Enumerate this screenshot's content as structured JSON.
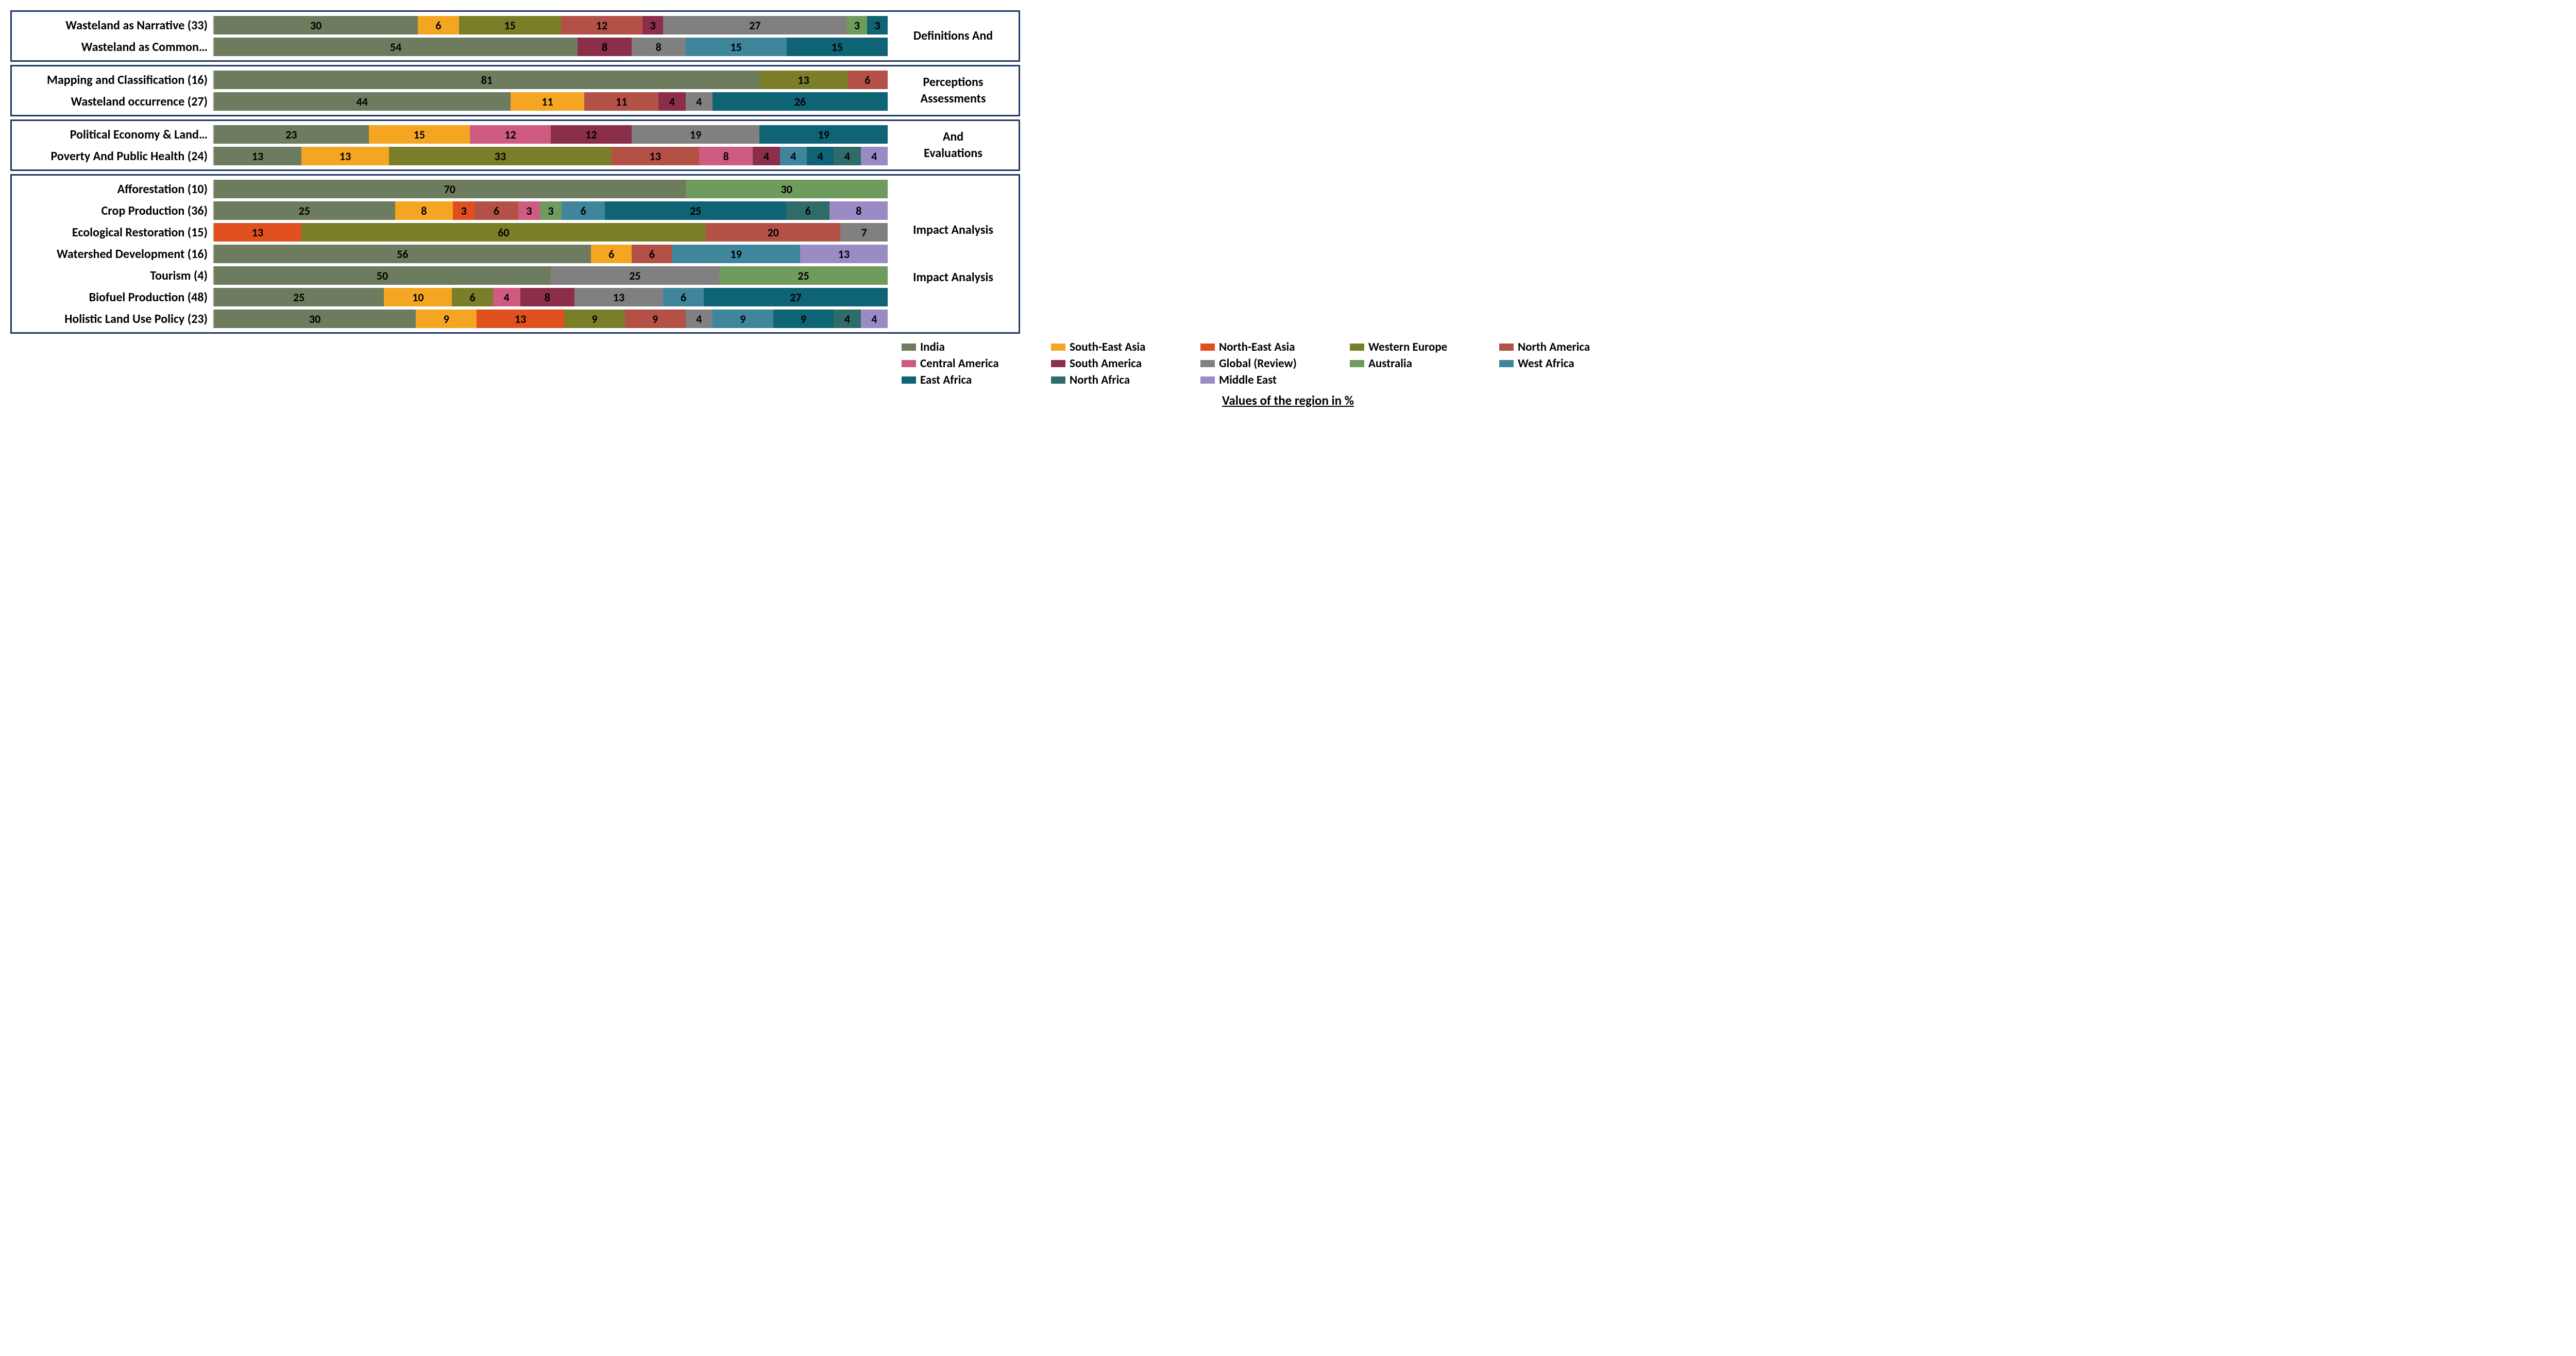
{
  "footer": "Values of the region in %",
  "font": {
    "family": "Calibri, Arial, sans-serif",
    "label_size": 24,
    "value_size": 22,
    "legend_size": 23
  },
  "regions": [
    {
      "key": "india",
      "name": "India",
      "color": "#6d7b5e"
    },
    {
      "key": "se_asia",
      "name": "South-East Asia",
      "color": "#f4a522"
    },
    {
      "key": "ne_asia",
      "name": "North-East Asia",
      "color": "#e0501f"
    },
    {
      "key": "w_europe",
      "name": "Western Europe",
      "color": "#7b7e28"
    },
    {
      "key": "n_america",
      "name": "North America",
      "color": "#b35147"
    },
    {
      "key": "c_america",
      "name": "Central America",
      "color": "#cf5c80"
    },
    {
      "key": "s_america",
      "name": "South America",
      "color": "#8b2e4a"
    },
    {
      "key": "global",
      "name": "Global (Review)",
      "color": "#808080"
    },
    {
      "key": "australia",
      "name": "Australia",
      "color": "#6f9b5d"
    },
    {
      "key": "w_africa",
      "name": "West Africa",
      "color": "#3f859b"
    },
    {
      "key": "e_africa",
      "name": "East Africa",
      "color": "#0e6374"
    },
    {
      "key": "n_africa",
      "name": "North Africa",
      "color": "#2f6b68"
    },
    {
      "key": "m_east",
      "name": "Middle East",
      "color": "#9b8bc4"
    }
  ],
  "groups": [
    {
      "label_lines": [
        "Definitions And",
        "Perceptions"
      ],
      "rows": [
        {
          "label": "Wasteland as Narrative (33)",
          "segments": [
            {
              "region": "india",
              "value": 30
            },
            {
              "region": "se_asia",
              "value": 6
            },
            {
              "region": "w_europe",
              "value": 15
            },
            {
              "region": "n_america",
              "value": 12
            },
            {
              "region": "s_america",
              "value": 3
            },
            {
              "region": "global",
              "value": 27
            },
            {
              "region": "australia",
              "value": 3
            },
            {
              "region": "e_africa",
              "value": 3
            }
          ]
        },
        {
          "label": "Wasteland as Common…",
          "segments": [
            {
              "region": "india",
              "value": 54
            },
            {
              "region": "s_america",
              "value": 8
            },
            {
              "region": "global",
              "value": 8
            },
            {
              "region": "w_africa",
              "value": 15
            },
            {
              "region": "e_africa",
              "value": 15
            }
          ]
        }
      ]
    },
    {
      "label_lines": [
        "Assessments",
        "And",
        "Evaluations"
      ],
      "label_slice_top": 1,
      "rows": [
        {
          "label": "Mapping and Classification (16)",
          "segments": [
            {
              "region": "india",
              "value": 81
            },
            {
              "region": "w_europe",
              "value": 13
            },
            {
              "region": "n_america",
              "value": 6
            }
          ]
        },
        {
          "label": "Wasteland occurrence (27)",
          "segments": [
            {
              "region": "india",
              "value": 44
            },
            {
              "region": "se_asia",
              "value": 11
            },
            {
              "region": "n_america",
              "value": 11
            },
            {
              "region": "s_america",
              "value": 4
            },
            {
              "region": "global",
              "value": 4
            },
            {
              "region": "e_africa",
              "value": 26
            }
          ]
        }
      ]
    },
    {
      "label_lines": [
        ""
      ],
      "rows": [
        {
          "label": "Political Economy & Land…",
          "segments": [
            {
              "region": "india",
              "value": 23
            },
            {
              "region": "se_asia",
              "value": 15
            },
            {
              "region": "c_america",
              "value": 12
            },
            {
              "region": "s_america",
              "value": 12
            },
            {
              "region": "global",
              "value": 19
            },
            {
              "region": "e_africa",
              "value": 19
            }
          ]
        },
        {
          "label": "Poverty And Public Health (24)",
          "segments": [
            {
              "region": "india",
              "value": 13
            },
            {
              "region": "se_asia",
              "value": 13
            },
            {
              "region": "w_europe",
              "value": 33
            },
            {
              "region": "n_america",
              "value": 13
            },
            {
              "region": "c_america",
              "value": 8
            },
            {
              "region": "s_america",
              "value": 4
            },
            {
              "region": "w_africa",
              "value": 4
            },
            {
              "region": "e_africa",
              "value": 4
            },
            {
              "region": "n_africa",
              "value": 4
            },
            {
              "region": "m_east",
              "value": 4
            }
          ]
        }
      ]
    },
    {
      "label_lines": [
        "Impact Analysis",
        "",
        "",
        "Impact Analysis"
      ],
      "rows": [
        {
          "label": "Afforestation (10)",
          "segments": [
            {
              "region": "india",
              "value": 70
            },
            {
              "region": "australia",
              "value": 30
            }
          ]
        },
        {
          "label": "Crop Production (36)",
          "segments": [
            {
              "region": "india",
              "value": 25
            },
            {
              "region": "se_asia",
              "value": 8
            },
            {
              "region": "ne_asia",
              "value": 3
            },
            {
              "region": "n_america",
              "value": 6
            },
            {
              "region": "c_america",
              "value": 3
            },
            {
              "region": "australia",
              "value": 3
            },
            {
              "region": "w_africa",
              "value": 6
            },
            {
              "region": "e_africa",
              "value": 25
            },
            {
              "region": "n_africa",
              "value": 6
            },
            {
              "region": "m_east",
              "value": 8
            }
          ]
        },
        {
          "label": "Ecological Restoration (15)",
          "segments": [
            {
              "region": "ne_asia",
              "value": 13
            },
            {
              "region": "w_europe",
              "value": 60
            },
            {
              "region": "n_america",
              "value": 20
            },
            {
              "region": "global",
              "value": 7
            }
          ]
        },
        {
          "label": "Watershed Development (16)",
          "segments": [
            {
              "region": "india",
              "value": 56
            },
            {
              "region": "se_asia",
              "value": 6
            },
            {
              "region": "n_america",
              "value": 6
            },
            {
              "region": "w_africa",
              "value": 19
            },
            {
              "region": "m_east",
              "value": 13
            }
          ]
        },
        {
          "label": "Tourism (4)",
          "segments": [
            {
              "region": "india",
              "value": 50
            },
            {
              "region": "global",
              "value": 25
            },
            {
              "region": "australia",
              "value": 25
            }
          ]
        },
        {
          "label": "Biofuel Production (48)",
          "segments": [
            {
              "region": "india",
              "value": 25
            },
            {
              "region": "se_asia",
              "value": 10
            },
            {
              "region": "w_europe",
              "value": 6
            },
            {
              "region": "c_america",
              "value": 4
            },
            {
              "region": "s_america",
              "value": 8
            },
            {
              "region": "global",
              "value": 13
            },
            {
              "region": "w_africa",
              "value": 6
            },
            {
              "region": "e_africa",
              "value": 27
            }
          ]
        },
        {
          "label": "Holistic Land Use Policy (23)",
          "segments": [
            {
              "region": "india",
              "value": 30
            },
            {
              "region": "se_asia",
              "value": 9
            },
            {
              "region": "ne_asia",
              "value": 13
            },
            {
              "region": "w_europe",
              "value": 9
            },
            {
              "region": "n_america",
              "value": 9
            },
            {
              "region": "global",
              "value": 4
            },
            {
              "region": "w_africa",
              "value": 9
            },
            {
              "region": "e_africa",
              "value": 9
            },
            {
              "region": "n_africa",
              "value": 4
            },
            {
              "region": "m_east",
              "value": 4
            }
          ]
        }
      ]
    }
  ],
  "group_label_map": [
    {
      "groups": [
        0,
        1
      ],
      "lines": [
        "Definitions And",
        "Perceptions"
      ]
    },
    {
      "groups": [
        1,
        2
      ],
      "lines": [
        "Assessments",
        "And",
        "Evaluations"
      ]
    },
    {
      "groups": [
        3
      ],
      "lines": [
        "Impact Analysis",
        "",
        "",
        "Impact Analysis"
      ]
    }
  ],
  "colors": {
    "border": "#203764",
    "axis": "#cccccc",
    "text": "#000000",
    "bg": "#ffffff"
  }
}
